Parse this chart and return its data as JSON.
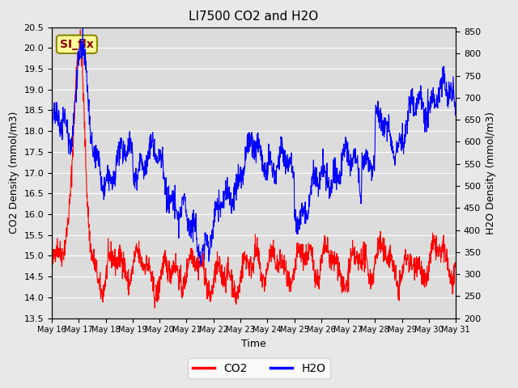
{
  "title": "LI7500 CO2 and H2O",
  "xlabel": "Time",
  "ylabel_left": "CO2 Density (mmol/m3)",
  "ylabel_right": "H2O Density (mmol/m3)",
  "ylim_left": [
    13.5,
    20.5
  ],
  "ylim_right": [
    200,
    860
  ],
  "yticks_left": [
    13.5,
    14.0,
    14.5,
    15.0,
    15.5,
    16.0,
    16.5,
    17.0,
    17.5,
    18.0,
    18.5,
    19.0,
    19.5,
    20.0,
    20.5
  ],
  "yticks_right": [
    200,
    250,
    300,
    350,
    400,
    450,
    500,
    550,
    600,
    650,
    700,
    750,
    800,
    850
  ],
  "xtick_labels": [
    "May 16",
    "May 17",
    "May 18",
    "May 19",
    "May 20",
    "May 21",
    "May 22",
    "May 23",
    "May 24",
    "May 25",
    "May 26",
    "May 27",
    "May 28",
    "May 29",
    "May 30",
    "May 31"
  ],
  "co2_color": "#FF0000",
  "h2o_color": "#0000FF",
  "background_color": "#E8E8E8",
  "plot_bg_color": "#DCDCDC",
  "grid_color": "#FFFFFF",
  "annotation_text": "SI_flx",
  "annotation_color": "#8B0000",
  "annotation_bg": "#FFFF99",
  "n_points": 1500
}
